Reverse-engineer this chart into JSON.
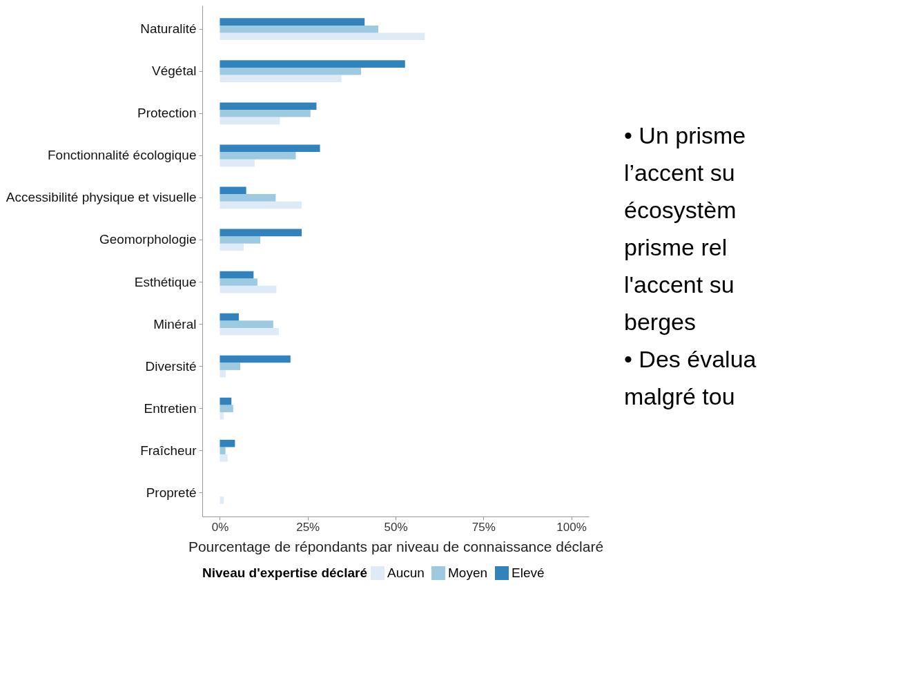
{
  "chart_data": {
    "type": "bar",
    "orientation": "horizontal",
    "xlabel": "Pourcentage de répondants par niveau de connaissance déclaré",
    "legend_title": "Niveau d'expertise déclaré",
    "categories": [
      "Naturalité",
      "Végétal",
      "Protection",
      "Fonctionnalité écologique",
      "Accessibilité physique et visuelle",
      "Geomorphologie",
      "Esthétique",
      "Minéral",
      "Diversité",
      "Entretien",
      "Fraîcheur",
      "Propreté"
    ],
    "series": [
      {
        "name": "Aucun",
        "color": "#deebf7",
        "values": [
          58.3,
          34.6,
          17.1,
          9.9,
          23.3,
          6.8,
          16.1,
          16.8,
          1.7,
          1.1,
          2.2,
          1.1
        ]
      },
      {
        "name": "Moyen",
        "color": "#9ecae1",
        "values": [
          45.1,
          40.2,
          25.8,
          21.6,
          15.9,
          11.5,
          10.7,
          15.2,
          5.8,
          3.8,
          1.6,
          0
        ]
      },
      {
        "name": "Elevé",
        "color": "#3182bd",
        "values": [
          41.2,
          52.7,
          27.5,
          28.5,
          7.5,
          23.3,
          9.6,
          5.4,
          20.1,
          3.3,
          4.3,
          0
        ]
      }
    ],
    "xlim": [
      -5,
      105
    ],
    "xticks": [
      {
        "value": 0,
        "label": "0%"
      },
      {
        "value": 25,
        "label": "25%"
      },
      {
        "value": 50,
        "label": "50%"
      },
      {
        "value": 75,
        "label": "75%"
      },
      {
        "value": 100,
        "label": "100%"
      }
    ],
    "grid": false,
    "legend": "bottom",
    "annotations": [
      "• Un prisme\nl’accent su\nécosystèm\nprisme rel\nl'accent su\nberges",
      "• Des évalua\nmalgré tou"
    ]
  }
}
